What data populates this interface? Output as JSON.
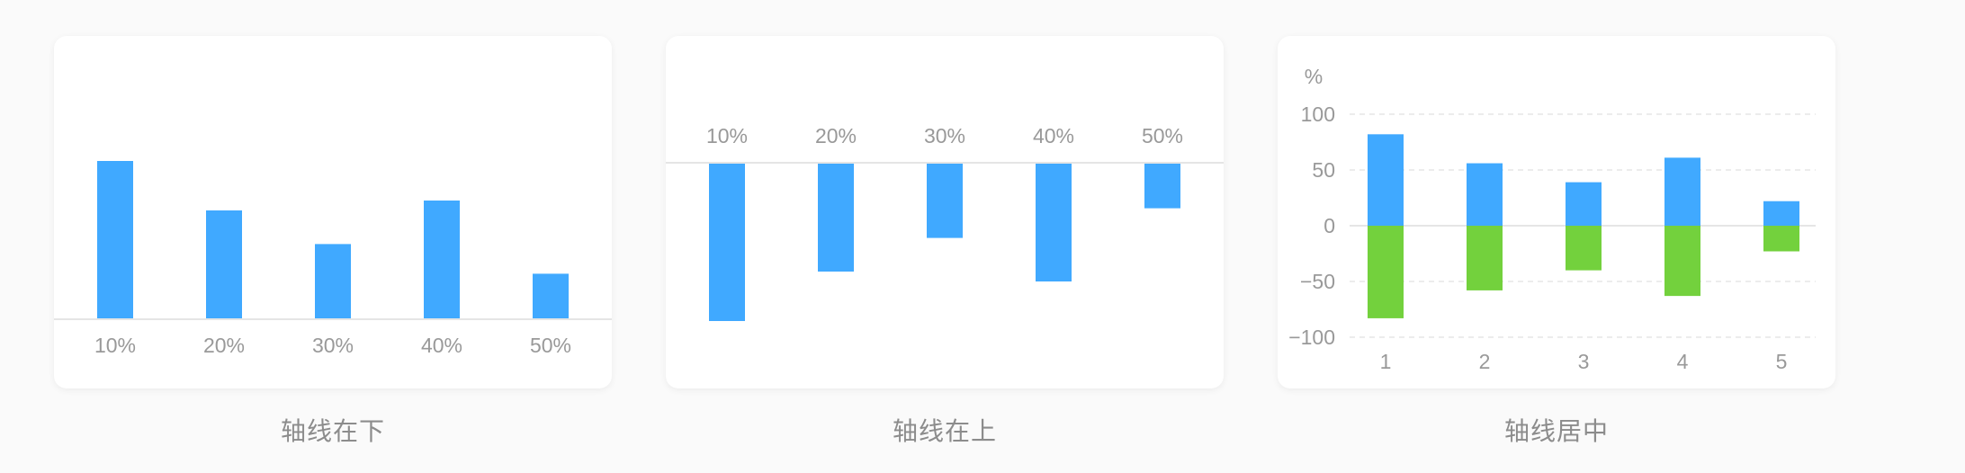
{
  "colors": {
    "positive": "#40a9ff",
    "negative": "#73d13d",
    "axis": "#e5e5e5",
    "grid": "#e6e6e6",
    "tick": "#999999"
  },
  "captions": [
    "轴线在下",
    "轴线在上",
    "轴线居中"
  ],
  "chart_data": [
    {
      "type": "bar",
      "axis_position": "bottom",
      "categories": [
        "10%",
        "20%",
        "30%",
        "40%",
        "50%"
      ],
      "values": [
        80,
        55,
        38,
        60,
        23
      ],
      "ylim": [
        0,
        100
      ],
      "grid": false
    },
    {
      "type": "bar",
      "axis_position": "top",
      "categories": [
        "10%",
        "20%",
        "30%",
        "40%",
        "50%"
      ],
      "values": [
        -80,
        -55,
        -38,
        -60,
        -23
      ],
      "ylim": [
        -100,
        0
      ],
      "grid": false
    },
    {
      "type": "bar",
      "axis_position": "middle",
      "categories": [
        "1",
        "2",
        "3",
        "4",
        "5"
      ],
      "series": [
        {
          "values": [
            82,
            56,
            39,
            61,
            22
          ]
        },
        {
          "values": [
            -83,
            -58,
            -40,
            -63,
            -23
          ]
        }
      ],
      "ylabel": "%",
      "yticks": [
        100,
        50,
        0,
        -50,
        -100
      ],
      "ylim": [
        -100,
        100
      ],
      "grid": true
    }
  ]
}
